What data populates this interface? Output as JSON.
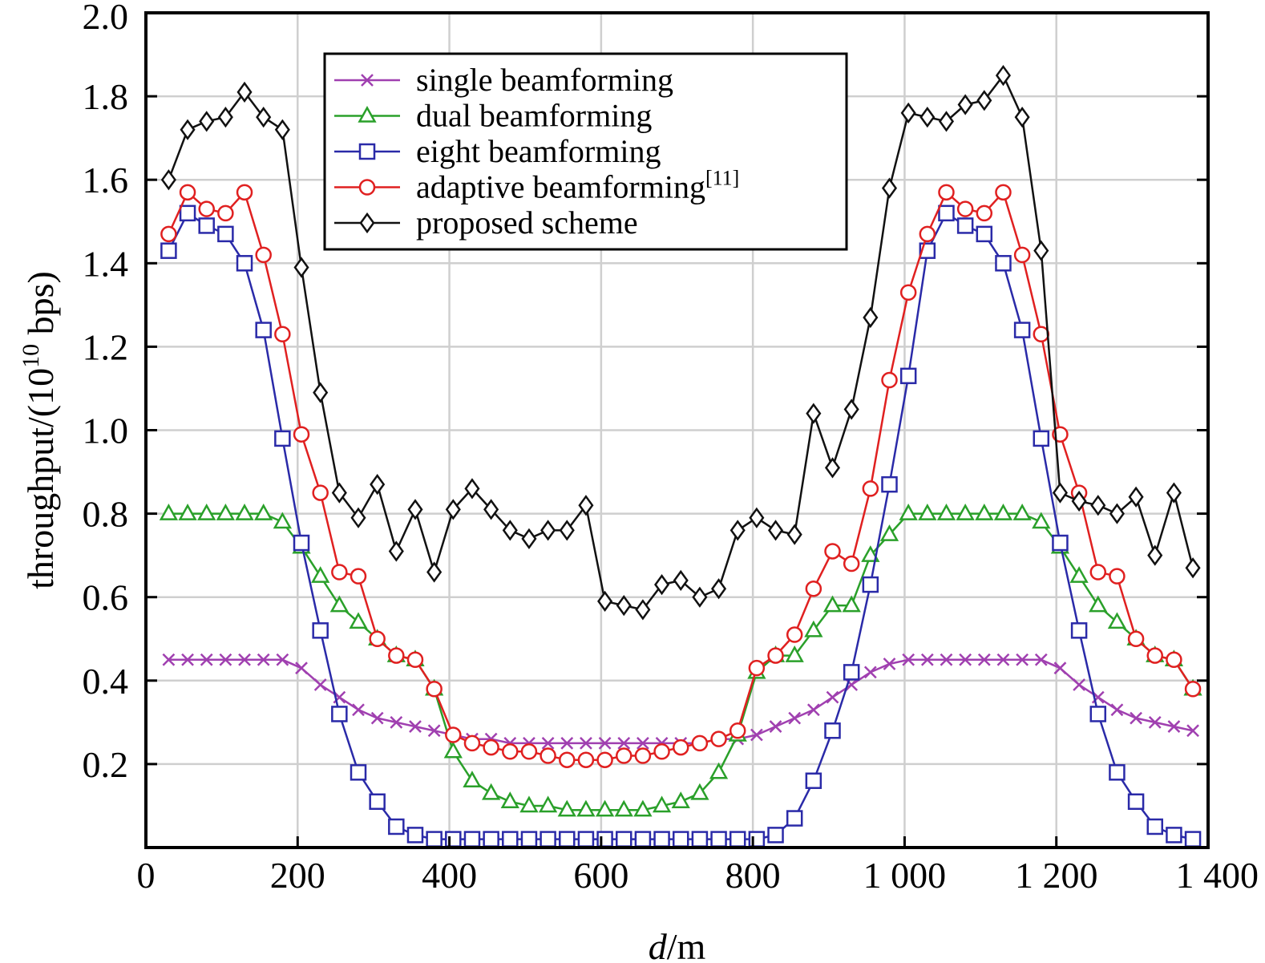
{
  "chart_data": {
    "type": "line",
    "title": "",
    "xlabel": "d/m",
    "xlabel_parts": {
      "var": "d",
      "unit": "/m"
    },
    "ylabel": "throughput/(10^10 bps)",
    "ylabel_parts": {
      "prefix": "throughput/(10",
      "sup": "10",
      "suffix": " bps)"
    },
    "xlim": [
      0,
      1400
    ],
    "ylim": [
      0,
      2.0
    ],
    "x_ticks": [
      0,
      200,
      400,
      600,
      800,
      1000,
      1200,
      1400
    ],
    "x_tick_labels": [
      "0",
      "200",
      "400",
      "600",
      "800",
      "1 000",
      "1 200",
      "1 400"
    ],
    "y_ticks": [
      0.2,
      0.4,
      0.6,
      0.8,
      1.0,
      1.2,
      1.4,
      1.6,
      1.8,
      2.0
    ],
    "y_tick_labels": [
      "0.2",
      "0.4",
      "0.6",
      "0.8",
      "1.0",
      "1.2",
      "1.4",
      "1.6",
      "1.8",
      "2.0"
    ],
    "grid": true,
    "legend_position": "top-center",
    "x": [
      30,
      55,
      80,
      105,
      130,
      155,
      180,
      205,
      230,
      255,
      280,
      305,
      330,
      355,
      380,
      405,
      430,
      455,
      480,
      505,
      530,
      555,
      580,
      605,
      630,
      655,
      680,
      705,
      730,
      755,
      780,
      805,
      830,
      855,
      880,
      905,
      930,
      955,
      980,
      1005,
      1030,
      1055,
      1080,
      1105,
      1130,
      1155,
      1180,
      1205,
      1230,
      1255,
      1280,
      1305,
      1330,
      1355,
      1380
    ],
    "series": [
      {
        "name": "single beamforming",
        "color": "#a040b0",
        "marker": "x",
        "values": [
          0.45,
          0.45,
          0.45,
          0.45,
          0.45,
          0.45,
          0.45,
          0.43,
          0.39,
          0.36,
          0.33,
          0.31,
          0.3,
          0.29,
          0.28,
          0.27,
          0.26,
          0.26,
          0.25,
          0.25,
          0.25,
          0.25,
          0.25,
          0.25,
          0.25,
          0.25,
          0.25,
          0.25,
          0.25,
          0.26,
          0.26,
          0.27,
          0.29,
          0.31,
          0.33,
          0.36,
          0.39,
          0.42,
          0.44,
          0.45,
          0.45,
          0.45,
          0.45,
          0.45,
          0.45,
          0.45,
          0.45,
          0.43,
          0.39,
          0.36,
          0.33,
          0.31,
          0.3,
          0.29,
          0.28
        ]
      },
      {
        "name": "dual beamforming",
        "color": "#2aa02a",
        "marker": "triangle",
        "values": [
          0.8,
          0.8,
          0.8,
          0.8,
          0.8,
          0.8,
          0.78,
          0.72,
          0.65,
          0.58,
          0.54,
          0.5,
          0.46,
          0.45,
          0.38,
          0.23,
          0.16,
          0.13,
          0.11,
          0.1,
          0.1,
          0.09,
          0.09,
          0.09,
          0.09,
          0.09,
          0.1,
          0.11,
          0.13,
          0.18,
          0.27,
          0.42,
          0.46,
          0.46,
          0.52,
          0.58,
          0.58,
          0.7,
          0.75,
          0.8,
          0.8,
          0.8,
          0.8,
          0.8,
          0.8,
          0.8,
          0.78,
          0.72,
          0.65,
          0.58,
          0.54,
          0.5,
          0.46,
          0.45,
          0.38
        ]
      },
      {
        "name": "eight beamforming",
        "color": "#2a2aa8",
        "marker": "square",
        "values": [
          1.43,
          1.52,
          1.49,
          1.47,
          1.4,
          1.24,
          0.98,
          0.73,
          0.52,
          0.32,
          0.18,
          0.11,
          0.05,
          0.03,
          0.02,
          0.02,
          0.02,
          0.02,
          0.02,
          0.02,
          0.02,
          0.02,
          0.02,
          0.02,
          0.02,
          0.02,
          0.02,
          0.02,
          0.02,
          0.02,
          0.02,
          0.02,
          0.03,
          0.07,
          0.16,
          0.28,
          0.42,
          0.63,
          0.87,
          1.13,
          1.43,
          1.52,
          1.49,
          1.47,
          1.4,
          1.24,
          0.98,
          0.73,
          0.52,
          0.32,
          0.18,
          0.11,
          0.05,
          0.03,
          0.02
        ]
      },
      {
        "name": "adaptive beamforming[11]",
        "name_parts": {
          "text": "adaptive beamforming",
          "sup": "[11]"
        },
        "color": "#e02020",
        "marker": "circle",
        "values": [
          1.47,
          1.57,
          1.53,
          1.52,
          1.57,
          1.42,
          1.23,
          0.99,
          0.85,
          0.66,
          0.65,
          0.5,
          0.46,
          0.45,
          0.38,
          0.27,
          0.25,
          0.24,
          0.23,
          0.23,
          0.22,
          0.21,
          0.21,
          0.21,
          0.22,
          0.22,
          0.23,
          0.24,
          0.25,
          0.26,
          0.28,
          0.43,
          0.46,
          0.51,
          0.62,
          0.71,
          0.68,
          0.86,
          1.12,
          1.33,
          1.47,
          1.57,
          1.53,
          1.52,
          1.57,
          1.42,
          1.23,
          0.99,
          0.85,
          0.66,
          0.65,
          0.5,
          0.46,
          0.45,
          0.38
        ]
      },
      {
        "name": "proposed scheme",
        "color": "#111111",
        "marker": "diamond",
        "values": [
          1.6,
          1.72,
          1.74,
          1.75,
          1.81,
          1.75,
          1.72,
          1.39,
          1.09,
          0.85,
          0.79,
          0.87,
          0.71,
          0.81,
          0.66,
          0.81,
          0.86,
          0.81,
          0.76,
          0.74,
          0.76,
          0.76,
          0.82,
          0.59,
          0.58,
          0.57,
          0.63,
          0.64,
          0.6,
          0.62,
          0.76,
          0.79,
          0.76,
          0.75,
          1.04,
          0.91,
          1.05,
          1.27,
          1.58,
          1.76,
          1.75,
          1.74,
          1.78,
          1.79,
          1.85,
          1.75,
          1.43,
          0.85,
          0.83,
          0.82,
          0.8,
          0.84,
          0.7,
          0.85,
          0.67
        ]
      }
    ]
  }
}
